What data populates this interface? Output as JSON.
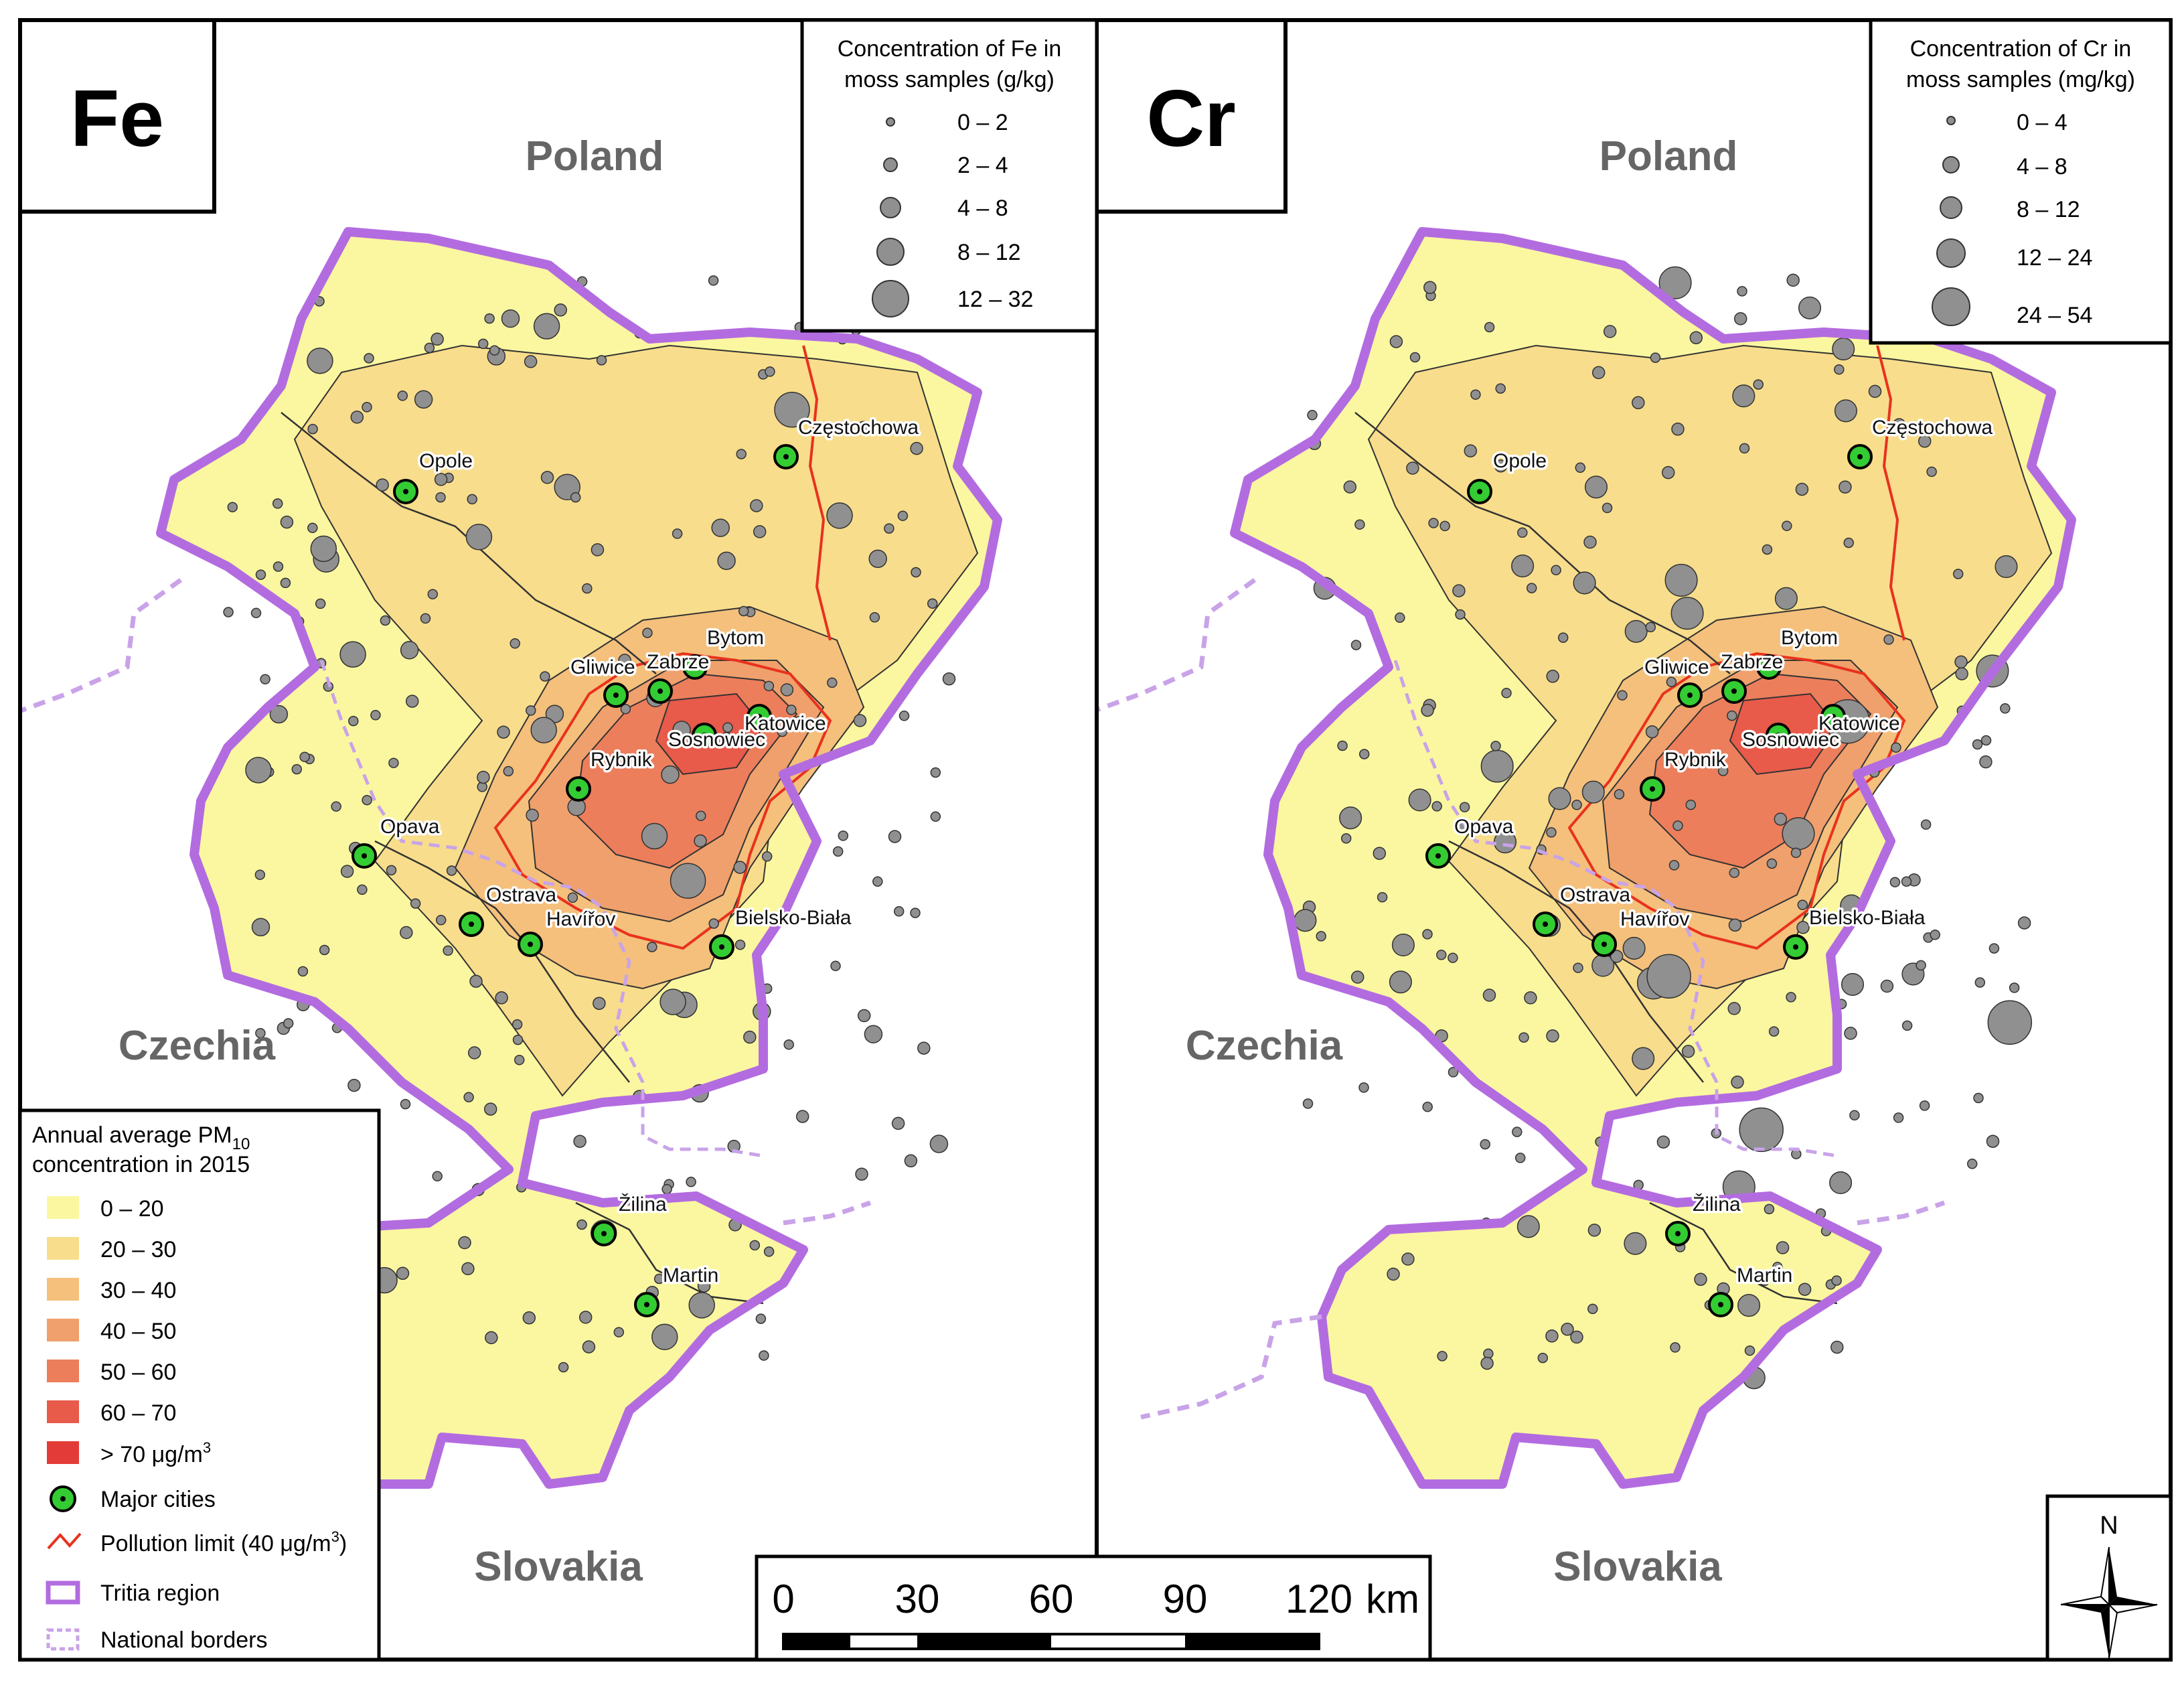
{
  "panels": [
    {
      "element": "Fe",
      "legend_title": [
        "Concentration of Fe in",
        "moss samples (g/kg)"
      ],
      "size_classes": [
        "0 – 2",
        "2 – 4",
        "4 – 8",
        "8 – 12",
        "12 – 32"
      ]
    },
    {
      "element": "Cr",
      "legend_title": [
        "Concentration of Cr in",
        "moss samples (mg/kg)"
      ],
      "size_classes": [
        "0 – 4",
        "4 – 8",
        "8 – 12",
        "12 – 24",
        "24 – 54"
      ]
    }
  ],
  "countries": [
    "Poland",
    "Czechia",
    "Slovakia"
  ],
  "cities": [
    "Częstochowa",
    "Opole",
    "Bytom",
    "Gliwice",
    "Zabrze",
    "Katowice",
    "Sosnowiec",
    "Rybnik",
    "Opava",
    "Ostrava",
    "Havířov",
    "Bielsko-Biała",
    "Žilina",
    "Martin"
  ],
  "pm_legend": {
    "title_main": "Annual average PM",
    "title_sub": "10",
    "title_line2": "concentration in 2015",
    "classes": [
      {
        "label": "0 – 20",
        "color": "#fbf7a0"
      },
      {
        "label": "20 – 30",
        "color": "#f8dd8c"
      },
      {
        "label": "30 – 40",
        "color": "#f4c07c"
      },
      {
        "label": "40 – 50",
        "color": "#f0a06c"
      },
      {
        "label": "50 – 60",
        "color": "#ec7e5c"
      },
      {
        "label": "60 – 70",
        "color": "#e85a4a"
      }
    ],
    "top_class": {
      "label": "> 70 μg/m",
      "sup": "3",
      "color": "#e33b38"
    },
    "major_cities": "Major cities",
    "pollution_limit": {
      "label": "Pollution limit (40 μg/m",
      "sup": "3",
      "suffix": ")"
    },
    "tritia": "Tritia region",
    "national_borders": "National borders"
  },
  "scale_bar": {
    "ticks": [
      "0",
      "30",
      "60",
      "90",
      "120"
    ],
    "unit": "km"
  },
  "north_arrow": {
    "label": "N",
    "icon": "north-arrow-icon"
  },
  "colors": {
    "tritia_outline": "#b36ce0",
    "national_border": "#c9a3e8",
    "pollution_limit": "#e8321e",
    "sample_dot": "#909090",
    "city_marker": "#33cc33"
  }
}
